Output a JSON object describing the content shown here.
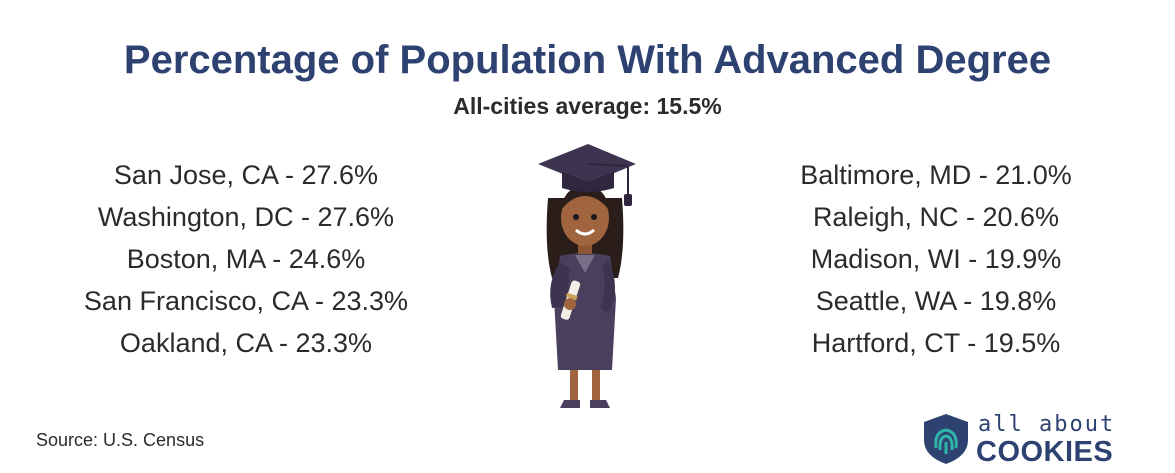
{
  "title": "Percentage of Population With Advanced Degree",
  "subtitle": "All-cities average: 15.5%",
  "source": "Source: U.S. Census",
  "logo": {
    "top": "all about",
    "bottom": "COOKIES"
  },
  "colors": {
    "title": "#2e4272",
    "text": "#2b2b2b",
    "gown": "#4b3f5e",
    "skin": "#a0643f"
  },
  "chart_data": {
    "type": "table",
    "title": "Percentage of Population With Advanced Degree",
    "subtitle": "All-cities average: 15.5%",
    "left": [
      {
        "label": "San Jose, CA - 27.6%",
        "city": "San Jose, CA",
        "value": 27.6
      },
      {
        "label": "Washington, DC - 27.6%",
        "city": "Washington, DC",
        "value": 27.6
      },
      {
        "label": "Boston, MA - 24.6%",
        "city": "Boston, MA",
        "value": 24.6
      },
      {
        "label": "San Francisco, CA - 23.3%",
        "city": "San Francisco, CA",
        "value": 23.3
      },
      {
        "label": "Oakland, CA - 23.3%",
        "city": "Oakland, CA",
        "value": 23.3
      }
    ],
    "right": [
      {
        "label": "Baltimore, MD - 21.0%",
        "city": "Baltimore, MD",
        "value": 21.0
      },
      {
        "label": "Raleigh, NC - 20.6%",
        "city": "Raleigh, NC",
        "value": 20.6
      },
      {
        "label": "Madison, WI - 19.9%",
        "city": "Madison, WI",
        "value": 19.9
      },
      {
        "label": "Seattle, WA - 19.8%",
        "city": "Seattle, WA",
        "value": 19.8
      },
      {
        "label": "Hartford, CT - 19.5%",
        "city": "Hartford, CT",
        "value": 19.5
      }
    ]
  }
}
